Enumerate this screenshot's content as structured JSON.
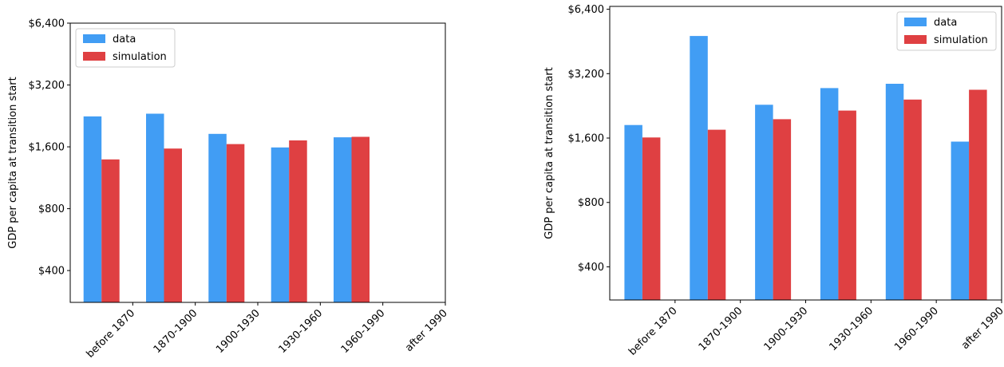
{
  "chart_data": [
    {
      "type": "bar",
      "categories": [
        "before 1870",
        "1870-1900",
        "1900-1930",
        "1930-1960",
        "1960-1990",
        "after 1990"
      ],
      "ylabel": "GDP per capita at transition start",
      "yscale": "log2",
      "ylim": [
        280,
        6400
      ],
      "yticks": [
        400,
        800,
        1600,
        3200,
        6400
      ],
      "ytick_labels": [
        "$400",
        "$800",
        "$1,600",
        "$3,200",
        "$6,400"
      ],
      "grid": false,
      "legend_position": "top-left",
      "series": [
        {
          "name": "data",
          "color": "#419df4",
          "values": [
            2250,
            2320,
            1850,
            1590,
            1780,
            null
          ]
        },
        {
          "name": "simulation",
          "color": "#df4042",
          "values": [
            1390,
            1570,
            1650,
            1720,
            1790,
            null
          ]
        }
      ]
    },
    {
      "type": "bar",
      "categories": [
        "before 1870",
        "1870-1900",
        "1900-1930",
        "1930-1960",
        "1960-1990",
        "after 1990"
      ],
      "ylabel": "GDP per capita at transition start",
      "yscale": "log2",
      "ylim": [
        280,
        6600
      ],
      "yticks": [
        400,
        800,
        1600,
        3200,
        6400
      ],
      "ytick_labels": [
        "$400",
        "$800",
        "$1,600",
        "$3,200",
        "$6,400"
      ],
      "grid": false,
      "legend_position": "top-right",
      "series": [
        {
          "name": "data",
          "color": "#419df4",
          "values": [
            1840,
            4800,
            2290,
            2740,
            2870,
            1540
          ]
        },
        {
          "name": "simulation",
          "color": "#df4042",
          "values": [
            1610,
            1750,
            1960,
            2150,
            2420,
            2690
          ]
        }
      ]
    }
  ]
}
